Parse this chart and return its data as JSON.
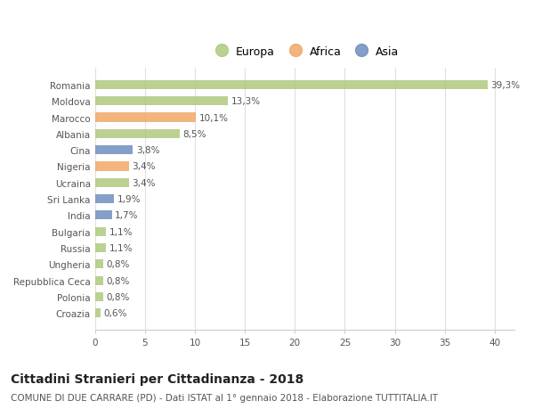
{
  "categories": [
    "Romania",
    "Moldova",
    "Marocco",
    "Albania",
    "Cina",
    "Nigeria",
    "Ucraina",
    "Sri Lanka",
    "India",
    "Bulgaria",
    "Russia",
    "Ungheria",
    "Repubblica Ceca",
    "Polonia",
    "Croazia"
  ],
  "values": [
    39.3,
    13.3,
    10.1,
    8.5,
    3.8,
    3.4,
    3.4,
    1.9,
    1.7,
    1.1,
    1.1,
    0.8,
    0.8,
    0.8,
    0.6
  ],
  "labels": [
    "39,3%",
    "13,3%",
    "10,1%",
    "8,5%",
    "3,8%",
    "3,4%",
    "3,4%",
    "1,9%",
    "1,7%",
    "1,1%",
    "1,1%",
    "0,8%",
    "0,8%",
    "0,8%",
    "0,6%"
  ],
  "continent": [
    "Europa",
    "Europa",
    "Africa",
    "Europa",
    "Asia",
    "Africa",
    "Europa",
    "Asia",
    "Asia",
    "Europa",
    "Europa",
    "Europa",
    "Europa",
    "Europa",
    "Europa"
  ],
  "colors": {
    "Europa": "#afc97e",
    "Africa": "#f0a868",
    "Asia": "#6e8fc0"
  },
  "title": "Cittadini Stranieri per Cittadinanza - 2018",
  "subtitle": "COMUNE DI DUE CARRARE (PD) - Dati ISTAT al 1° gennaio 2018 - Elaborazione TUTTITALIA.IT",
  "xlim": [
    0,
    42
  ],
  "xticks": [
    0,
    5,
    10,
    15,
    20,
    25,
    30,
    35,
    40
  ],
  "background_color": "#ffffff",
  "grid_color": "#e0e0e0",
  "bar_height": 0.55,
  "title_fontsize": 10,
  "subtitle_fontsize": 7.5,
  "label_fontsize": 7.5,
  "tick_fontsize": 7.5,
  "legend_fontsize": 9
}
